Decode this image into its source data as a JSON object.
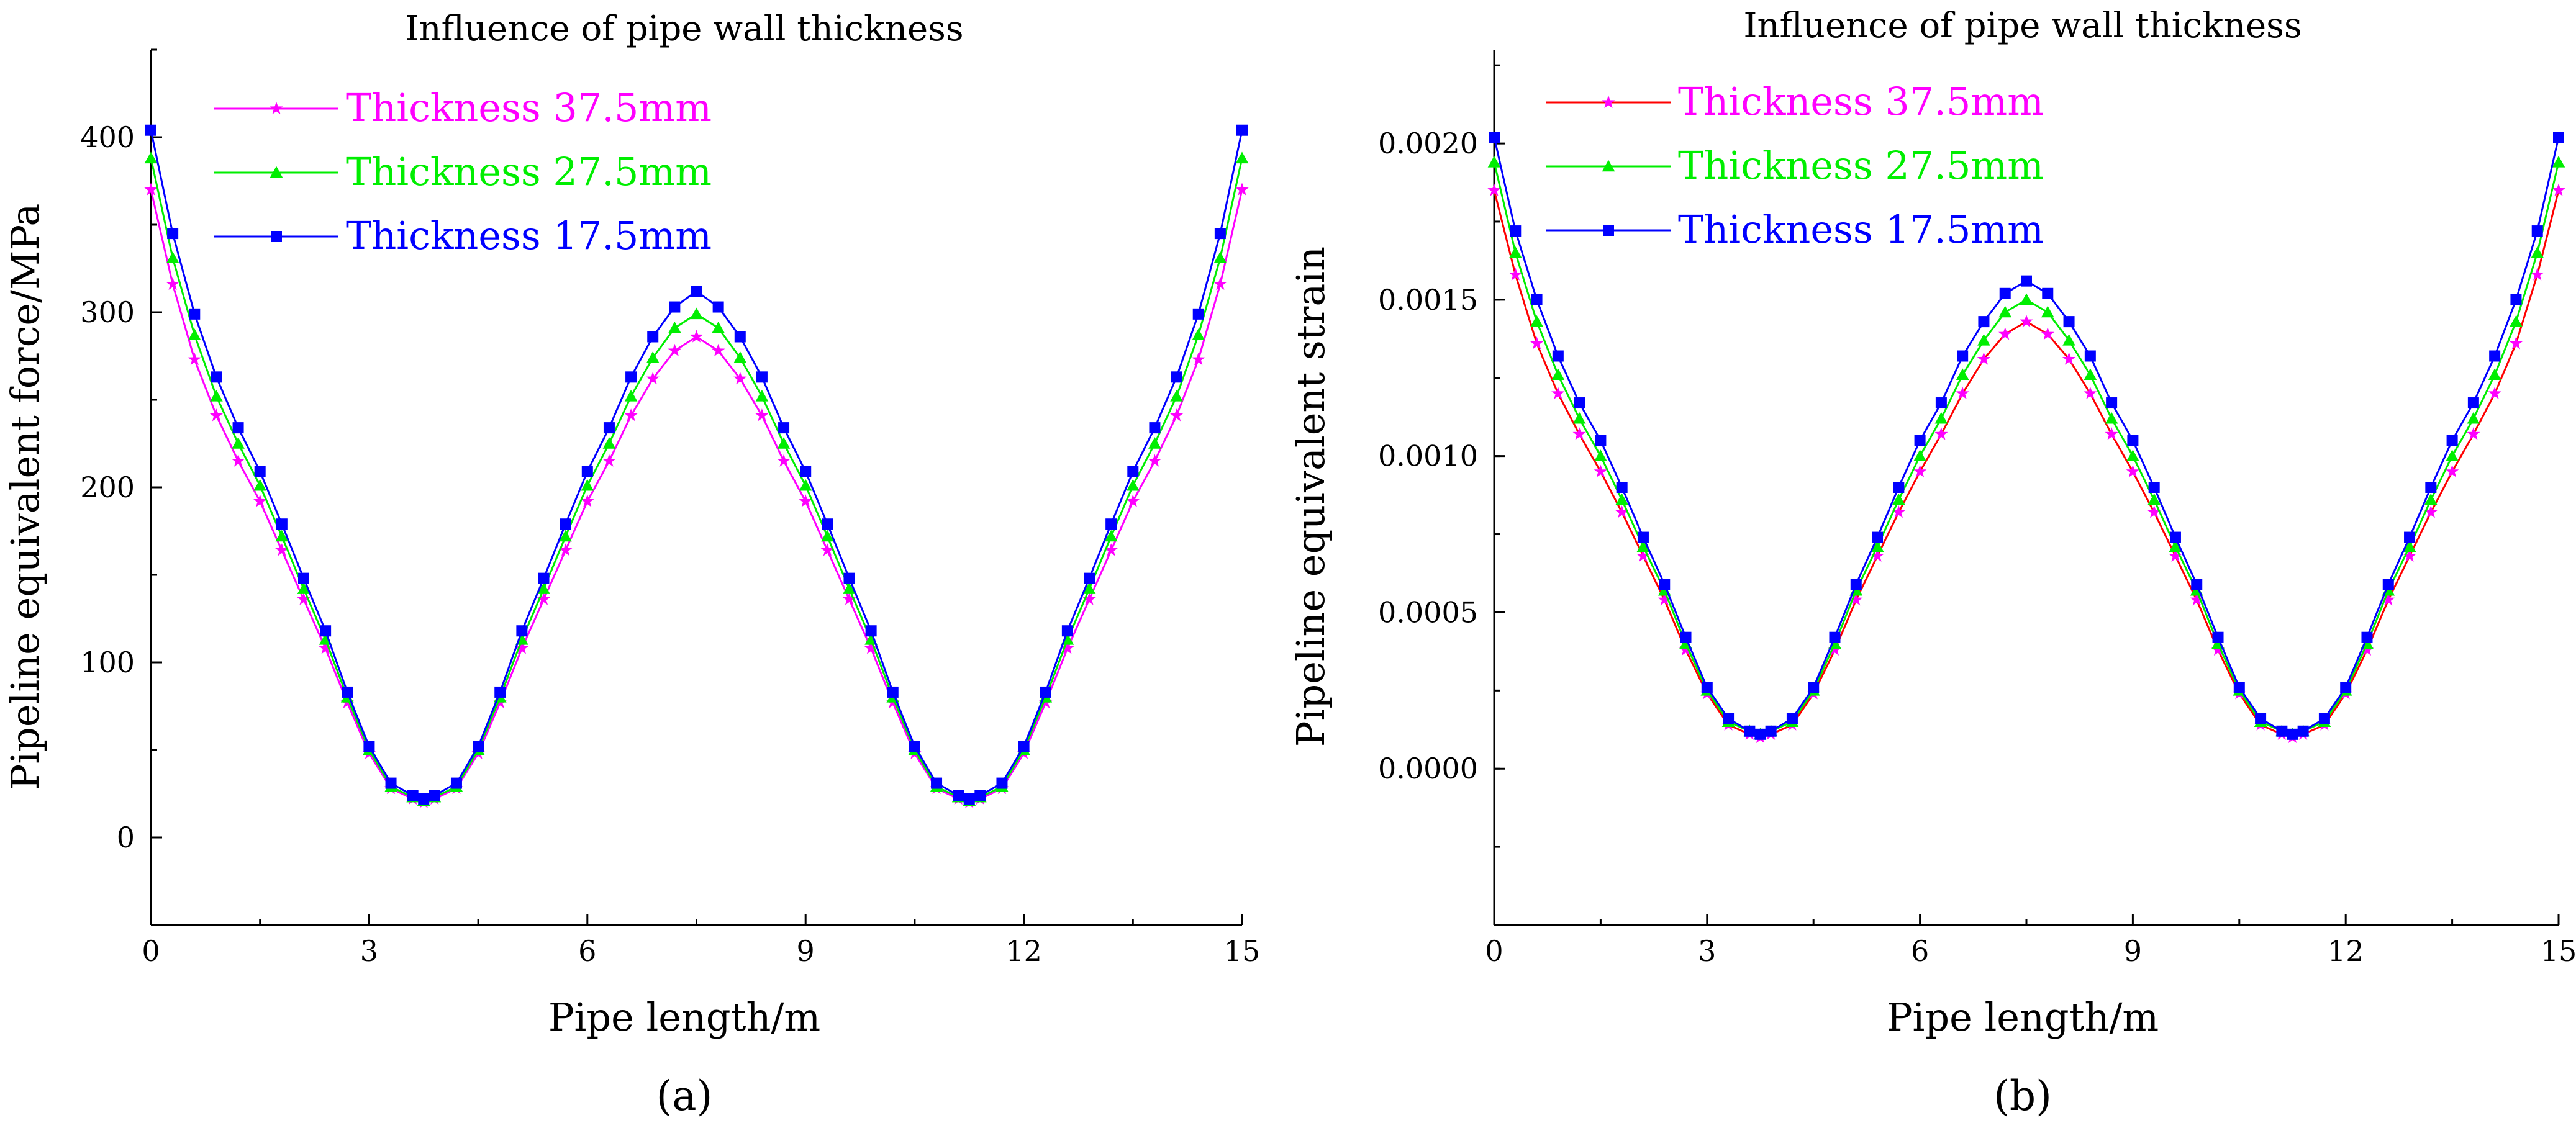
{
  "colors": {
    "thickness_37_5": "#ff00ff",
    "thickness_27_5": "#00ee00",
    "thickness_17_5": "#0000ff",
    "axis": "#000000"
  },
  "chart_data": [
    {
      "type": "line",
      "panel_label": "(a)",
      "title": "Influence of pipe wall thickness",
      "xlabel": "Pipe length/m",
      "ylabel": "Pipeline equivalent force/MPa",
      "xlim": [
        0,
        15
      ],
      "ylim": [
        -50,
        450
      ],
      "x_ticks": [
        0,
        3,
        6,
        9,
        12,
        15
      ],
      "x_tick_labels": [
        "0",
        "3",
        "6",
        "9",
        "12",
        "15"
      ],
      "y_ticks": [
        0,
        100,
        200,
        300,
        400
      ],
      "y_tick_labels": [
        "0",
        "100",
        "200",
        "300",
        "400"
      ],
      "legend_position": "top-left",
      "x": [
        0,
        0.3,
        0.6,
        0.9,
        1.2,
        1.5,
        1.8,
        2.1,
        2.4,
        2.7,
        3.0,
        3.3,
        3.6,
        3.75,
        3.9,
        4.2,
        4.5,
        4.8,
        5.1,
        5.4,
        5.7,
        6.0,
        6.3,
        6.6,
        6.9,
        7.2,
        7.5,
        7.8,
        8.1,
        8.4,
        8.7,
        9.0,
        9.3,
        9.6,
        9.9,
        10.2,
        10.5,
        10.8,
        11.1,
        11.25,
        11.4,
        11.7,
        12.0,
        12.3,
        12.6,
        12.9,
        13.2,
        13.5,
        13.8,
        14.1,
        14.4,
        14.7,
        15.0
      ],
      "series": [
        {
          "name": "Thickness 37.5mm",
          "color": "#ff00ff",
          "marker": "star",
          "values": [
            370,
            316,
            273,
            241,
            215,
            192,
            164,
            136,
            108,
            77,
            48,
            28,
            22,
            20,
            22,
            28,
            48,
            77,
            108,
            136,
            164,
            192,
            215,
            241,
            262,
            278,
            286,
            278,
            262,
            241,
            215,
            192,
            164,
            136,
            108,
            77,
            48,
            28,
            22,
            20,
            22,
            28,
            48,
            77,
            108,
            136,
            164,
            192,
            215,
            241,
            273,
            316,
            370
          ]
        },
        {
          "name": "Thickness 27.5mm",
          "color": "#00ee00",
          "marker": "triangle",
          "values": [
            388,
            331,
            287,
            252,
            225,
            201,
            172,
            142,
            113,
            80,
            50,
            29,
            23,
            21,
            23,
            29,
            50,
            80,
            113,
            142,
            172,
            201,
            225,
            252,
            274,
            291,
            299,
            291,
            274,
            252,
            225,
            201,
            172,
            142,
            113,
            80,
            50,
            29,
            23,
            21,
            23,
            29,
            50,
            80,
            113,
            142,
            172,
            201,
            225,
            252,
            287,
            331,
            388
          ]
        },
        {
          "name": "Thickness 17.5mm",
          "color": "#0000ff",
          "marker": "square",
          "values": [
            404,
            345,
            299,
            263,
            234,
            209,
            179,
            148,
            118,
            83,
            52,
            31,
            24,
            22,
            24,
            31,
            52,
            83,
            118,
            148,
            179,
            209,
            234,
            263,
            286,
            303,
            312,
            303,
            286,
            263,
            234,
            209,
            179,
            148,
            118,
            83,
            52,
            31,
            24,
            22,
            24,
            31,
            52,
            83,
            118,
            148,
            179,
            209,
            234,
            263,
            299,
            345,
            404
          ]
        }
      ]
    },
    {
      "type": "line",
      "panel_label": "(b)",
      "title": "Influence of pipe wall thickness",
      "xlabel": "Pipe length/m",
      "ylabel": "Pipeline equivalent strain",
      "xlim": [
        0,
        15
      ],
      "ylim": [
        -0.0005,
        0.0023
      ],
      "x_ticks": [
        0,
        3,
        6,
        9,
        12,
        15
      ],
      "x_tick_labels": [
        "0",
        "3",
        "6",
        "9",
        "12",
        "15"
      ],
      "y_ticks": [
        0,
        0.0005,
        0.001,
        0.0015,
        0.002
      ],
      "y_tick_labels": [
        "0.0000",
        "0.0005",
        "0.0010",
        "0.0015",
        "0.0020"
      ],
      "legend_position": "top-left",
      "x": [
        0,
        0.3,
        0.6,
        0.9,
        1.2,
        1.5,
        1.8,
        2.1,
        2.4,
        2.7,
        3.0,
        3.3,
        3.6,
        3.75,
        3.9,
        4.2,
        4.5,
        4.8,
        5.1,
        5.4,
        5.7,
        6.0,
        6.3,
        6.6,
        6.9,
        7.2,
        7.5,
        7.8,
        8.1,
        8.4,
        8.7,
        9.0,
        9.3,
        9.6,
        9.9,
        10.2,
        10.5,
        10.8,
        11.1,
        11.25,
        11.4,
        11.7,
        12.0,
        12.3,
        12.6,
        12.9,
        13.2,
        13.5,
        13.8,
        14.1,
        14.4,
        14.7,
        15.0
      ],
      "series": [
        {
          "name": "Thickness 37.5mm",
          "color": "#ff00ff",
          "line_color": "#ff0000",
          "marker": "star",
          "values": [
            0.00185,
            0.00158,
            0.00136,
            0.0012,
            0.00107,
            0.00095,
            0.00082,
            0.00068,
            0.00054,
            0.00038,
            0.00024,
            0.00014,
            0.00011,
            0.0001,
            0.00011,
            0.00014,
            0.00024,
            0.00038,
            0.00054,
            0.00068,
            0.00082,
            0.00095,
            0.00107,
            0.0012,
            0.00131,
            0.00139,
            0.00143,
            0.00139,
            0.00131,
            0.0012,
            0.00107,
            0.00095,
            0.00082,
            0.00068,
            0.00054,
            0.00038,
            0.00024,
            0.00014,
            0.00011,
            0.0001,
            0.00011,
            0.00014,
            0.00024,
            0.00038,
            0.00054,
            0.00068,
            0.00082,
            0.00095,
            0.00107,
            0.0012,
            0.00136,
            0.00158,
            0.00185
          ]
        },
        {
          "name": "Thickness 27.5mm",
          "color": "#00ee00",
          "marker": "triangle",
          "values": [
            0.00194,
            0.00165,
            0.00143,
            0.00126,
            0.00112,
            0.001,
            0.00086,
            0.00071,
            0.00057,
            0.0004,
            0.00025,
            0.00015,
            0.00012,
            0.00011,
            0.00012,
            0.00015,
            0.00025,
            0.0004,
            0.00057,
            0.00071,
            0.00086,
            0.001,
            0.00112,
            0.00126,
            0.00137,
            0.00146,
            0.0015,
            0.00146,
            0.00137,
            0.00126,
            0.00112,
            0.001,
            0.00086,
            0.00071,
            0.00057,
            0.0004,
            0.00025,
            0.00015,
            0.00012,
            0.00011,
            0.00012,
            0.00015,
            0.00025,
            0.0004,
            0.00057,
            0.00071,
            0.00086,
            0.001,
            0.00112,
            0.00126,
            0.00143,
            0.00165,
            0.00194
          ]
        },
        {
          "name": "Thickness 17.5mm",
          "color": "#0000ff",
          "marker": "square",
          "values": [
            0.00202,
            0.00172,
            0.0015,
            0.00132,
            0.00117,
            0.00105,
            0.0009,
            0.00074,
            0.00059,
            0.00042,
            0.00026,
            0.00016,
            0.00012,
            0.00011,
            0.00012,
            0.00016,
            0.00026,
            0.00042,
            0.00059,
            0.00074,
            0.0009,
            0.00105,
            0.00117,
            0.00132,
            0.00143,
            0.00152,
            0.00156,
            0.00152,
            0.00143,
            0.00132,
            0.00117,
            0.00105,
            0.0009,
            0.00074,
            0.00059,
            0.00042,
            0.00026,
            0.00016,
            0.00012,
            0.00011,
            0.00012,
            0.00016,
            0.00026,
            0.00042,
            0.00059,
            0.00074,
            0.0009,
            0.00105,
            0.00117,
            0.00132,
            0.0015,
            0.00172,
            0.00202
          ]
        }
      ]
    }
  ]
}
